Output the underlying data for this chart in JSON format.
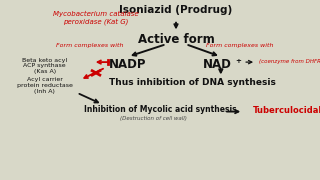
{
  "bg_color": "#d8d8c8",
  "title": "Isoniazid (Prodrug)",
  "title_fontsize": 7.5,
  "title_color": "#111111",
  "active_form": "Active form",
  "active_form_fontsize": 8.5,
  "active_form_color": "#111111",
  "mycobacterium": "Mycobacterium catalase\nperoxidase (Kat G)",
  "mycobacterium_color": "#cc0000",
  "mycobacterium_fontsize": 5.0,
  "form_complexes_left": "Form complexes with",
  "form_complexes_right": "Form complexes with",
  "form_complexes_color": "#cc0000",
  "form_complexes_fontsize": 4.5,
  "nadp": "NADP",
  "nad": "NAD",
  "nad_plus": "+",
  "nadp_nad_fontsize": 8.5,
  "nadp_nad_color": "#111111",
  "coenzyme": "(coenzyme from DHFR)",
  "coenzyme_color": "#cc0000",
  "coenzyme_fontsize": 4.0,
  "beta_keto": "Beta keto acyl\nACP synthase\n(Kas A)",
  "beta_keto_color": "#111111",
  "beta_keto_fontsize": 4.5,
  "acyl_carrier": "Acyl carrier\nprotein reductase\n(Inh A)",
  "acyl_carrier_color": "#111111",
  "acyl_carrier_fontsize": 4.5,
  "dna_inhibition": "Thus inhibition of DNA synthesis",
  "dna_inhibition_color": "#111111",
  "dna_inhibition_fontsize": 6.5,
  "mycolic_text": "Inhibition of Mycolic acid synthesis",
  "mycolic_color": "#111111",
  "mycolic_fontsize": 5.5,
  "destruction": "(Destruction of cell wall)",
  "destruction_color": "#444444",
  "destruction_fontsize": 4.0,
  "tuberculocidal": "Tuberculocidal",
  "tuberculocidal_color": "#cc0000",
  "tuberculocidal_fontsize": 6.0,
  "arrow_color": "#111111",
  "block_arrow_color": "#cc0000",
  "xlim": [
    0,
    10
  ],
  "ylim": [
    0,
    10
  ]
}
